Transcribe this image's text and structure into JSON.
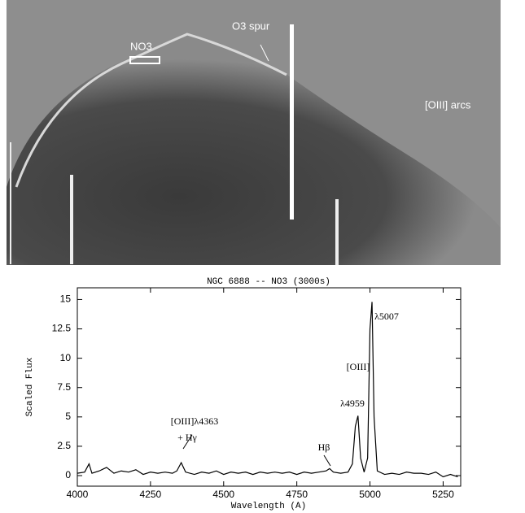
{
  "image_labels": [
    "NO3",
    "O3 spur",
    "[OIII] arcs"
  ],
  "chart_data": {
    "type": "line",
    "title": "NGC 6888 -- NO3 (3000s)",
    "x_label": "Wavelength (A)",
    "y_label": "Scaled Flux",
    "x": [
      4000,
      4025,
      4040,
      4050,
      4075,
      4100,
      4125,
      4150,
      4175,
      4200,
      4225,
      4250,
      4275,
      4300,
      4325,
      4340,
      4355,
      4370,
      4400,
      4425,
      4450,
      4475,
      4500,
      4525,
      4550,
      4575,
      4600,
      4625,
      4650,
      4675,
      4700,
      4725,
      4750,
      4775,
      4800,
      4825,
      4850,
      4862,
      4875,
      4900,
      4925,
      4940,
      4950,
      4959,
      4968,
      4980,
      4992,
      5000,
      5007,
      5014,
      5025,
      5050,
      5075,
      5100,
      5125,
      5150,
      5175,
      5200,
      5225,
      5250,
      5275,
      5300
    ],
    "series": [
      {
        "color": "#000000",
        "values": [
          0.2,
          0.3,
          1.0,
          0.2,
          0.4,
          0.7,
          0.2,
          0.4,
          0.3,
          0.5,
          0.1,
          0.3,
          0.2,
          0.3,
          0.2,
          0.4,
          1.1,
          0.3,
          0.1,
          0.3,
          0.2,
          0.4,
          0.1,
          0.3,
          0.2,
          0.3,
          0.1,
          0.3,
          0.2,
          0.3,
          0.2,
          0.3,
          0.1,
          0.3,
          0.2,
          0.3,
          0.4,
          0.6,
          0.3,
          0.2,
          0.3,
          1.0,
          4.2,
          5.1,
          1.5,
          0.3,
          1.5,
          12.5,
          14.8,
          5.0,
          0.4,
          0.1,
          0.2,
          0.1,
          0.3,
          0.2,
          0.2,
          0.1,
          0.3,
          -0.1,
          0.1,
          -0.1
        ]
      }
    ],
    "xlim": [
      4000,
      5310
    ],
    "ylim": [
      -0.9,
      16
    ],
    "xticks": [
      4000,
      4250,
      4500,
      4750,
      5000,
      5250
    ],
    "yticks": [
      0,
      2.5,
      5,
      7.5,
      10,
      12.5,
      15
    ],
    "annotations": [
      "λ5007",
      "[OIII]",
      "λ4959",
      "Hβ",
      "[OIII]λ4363",
      "+ Hγ"
    ]
  }
}
